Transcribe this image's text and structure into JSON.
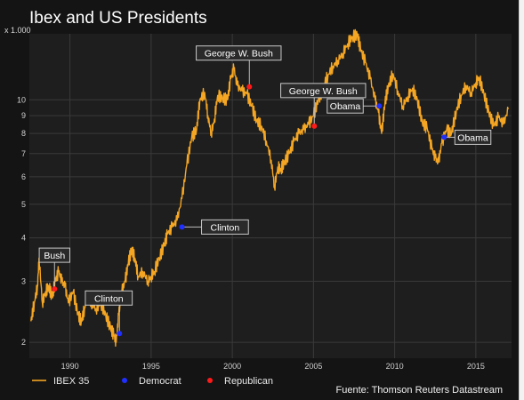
{
  "title": "Ibex and US Presidents",
  "y_unit_label": "x 1.000",
  "source_note": "Fuente: Thomson Reuters Datastream",
  "colors": {
    "background": "#141414",
    "plot_background": "#1e1e1e",
    "grid": "#3a3a3a",
    "ibex_line": "#f5a623",
    "democrat": "#1f2fff",
    "republican": "#ff1a1a",
    "text": "#e8e8e8"
  },
  "chart_data": {
    "type": "line",
    "title": "Ibex and US Presidents",
    "xlabel": "",
    "ylabel": "",
    "y_scale": "log",
    "xlim": [
      1987.5,
      2017.2
    ],
    "ylim": [
      1.8,
      15.5
    ],
    "x_ticks": [
      1990,
      1995,
      2000,
      2005,
      2010,
      2015
    ],
    "y_ticks": [
      2,
      3,
      4,
      5,
      6,
      7,
      8,
      9,
      10
    ],
    "grid": true,
    "legend_position": "bottom-left",
    "legend": [
      {
        "label": "IBEX 35",
        "kind": "line"
      },
      {
        "label": "Democrat",
        "kind": "dot"
      },
      {
        "label": "Republican",
        "kind": "dot"
      }
    ],
    "series": [
      {
        "name": "IBEX 35",
        "x": [
          1987.6,
          1987.8,
          1988.0,
          1988.1,
          1988.3,
          1988.5,
          1988.7,
          1988.9,
          1989.1,
          1989.3,
          1989.5,
          1989.7,
          1989.9,
          1990.2,
          1990.5,
          1990.7,
          1990.9,
          1991.1,
          1991.3,
          1991.6,
          1991.9,
          1992.2,
          1992.5,
          1992.7,
          1992.85,
          1993.0,
          1993.2,
          1993.4,
          1993.6,
          1993.8,
          1994.0,
          1994.2,
          1994.5,
          1994.8,
          1995.0,
          1995.2,
          1995.5,
          1995.8,
          1996.0,
          1996.3,
          1996.6,
          1996.9,
          1997.2,
          1997.5,
          1997.8,
          1998.0,
          1998.3,
          1998.5,
          1998.7,
          1998.9,
          1999.1,
          1999.4,
          1999.7,
          1999.9,
          2000.1,
          2000.3,
          2000.6,
          2000.9,
          2001.2,
          2001.5,
          2001.8,
          2002.1,
          2002.4,
          2002.6,
          2002.8,
          2003.0,
          2003.2,
          2003.5,
          2003.8,
          2004.1,
          2004.4,
          2004.7,
          2005.0,
          2005.3,
          2005.6,
          2005.9,
          2006.2,
          2006.5,
          2006.8,
          2007.1,
          2007.4,
          2007.7,
          2007.9,
          2008.2,
          2008.5,
          2008.8,
          2009.0,
          2009.2,
          2009.4,
          2009.6,
          2009.9,
          2010.2,
          2010.5,
          2010.8,
          2011.1,
          2011.4,
          2011.7,
          2012.0,
          2012.3,
          2012.5,
          2012.7,
          2012.9,
          2013.2,
          2013.5,
          2013.8,
          2014.1,
          2014.4,
          2014.7,
          2015.0,
          2015.2,
          2015.5,
          2015.8,
          2016.1,
          2016.4,
          2016.7,
          2017.0
        ],
        "y": [
          2.3,
          2.6,
          2.9,
          3.5,
          2.6,
          2.8,
          2.9,
          2.7,
          3.0,
          3.2,
          3.0,
          2.9,
          2.6,
          2.8,
          2.4,
          2.3,
          2.5,
          2.8,
          2.6,
          2.5,
          2.6,
          2.4,
          2.2,
          2.1,
          2.0,
          2.4,
          2.8,
          3.0,
          3.4,
          3.7,
          3.5,
          3.1,
          3.2,
          3.0,
          3.1,
          3.2,
          3.5,
          3.8,
          4.1,
          4.3,
          4.5,
          5.2,
          6.5,
          7.8,
          8.2,
          10.0,
          10.5,
          9.0,
          8.0,
          8.8,
          10.3,
          10.1,
          10.0,
          11.5,
          12.3,
          11.0,
          10.6,
          10.4,
          9.6,
          8.7,
          8.4,
          7.6,
          6.7,
          5.6,
          6.4,
          6.3,
          6.6,
          7.0,
          7.6,
          8.0,
          8.2,
          8.5,
          9.0,
          10.0,
          10.8,
          11.8,
          12.5,
          13.0,
          13.6,
          14.5,
          15.2,
          15.4,
          14.0,
          12.8,
          11.5,
          10.0,
          9.2,
          8.0,
          9.8,
          10.9,
          11.9,
          10.6,
          9.6,
          10.2,
          10.8,
          10.0,
          8.6,
          8.3,
          7.2,
          6.8,
          6.6,
          7.5,
          8.2,
          8.0,
          9.3,
          10.3,
          11.0,
          10.5,
          11.2,
          11.6,
          10.4,
          9.2,
          8.4,
          8.9,
          8.5,
          9.4
        ]
      }
    ],
    "annotations": [
      {
        "label": "Bush",
        "party": "Republican",
        "x": 1989.05,
        "y": 2.85
      },
      {
        "label": "Clinton",
        "party": "Democrat",
        "x": 1993.05,
        "y": 2.12
      },
      {
        "label": "Clinton",
        "party": "Democrat",
        "x": 1996.9,
        "y": 4.3
      },
      {
        "label": "George W. Bush",
        "party": "Republican",
        "x": 2001.05,
        "y": 10.9
      },
      {
        "label": "George W. Bush",
        "party": "Republican",
        "x": 2005.05,
        "y": 8.4
      },
      {
        "label": "Obama",
        "party": "Democrat",
        "x": 2009.05,
        "y": 9.6
      },
      {
        "label": "Obama",
        "party": "Democrat",
        "x": 2013.05,
        "y": 7.8
      }
    ]
  }
}
